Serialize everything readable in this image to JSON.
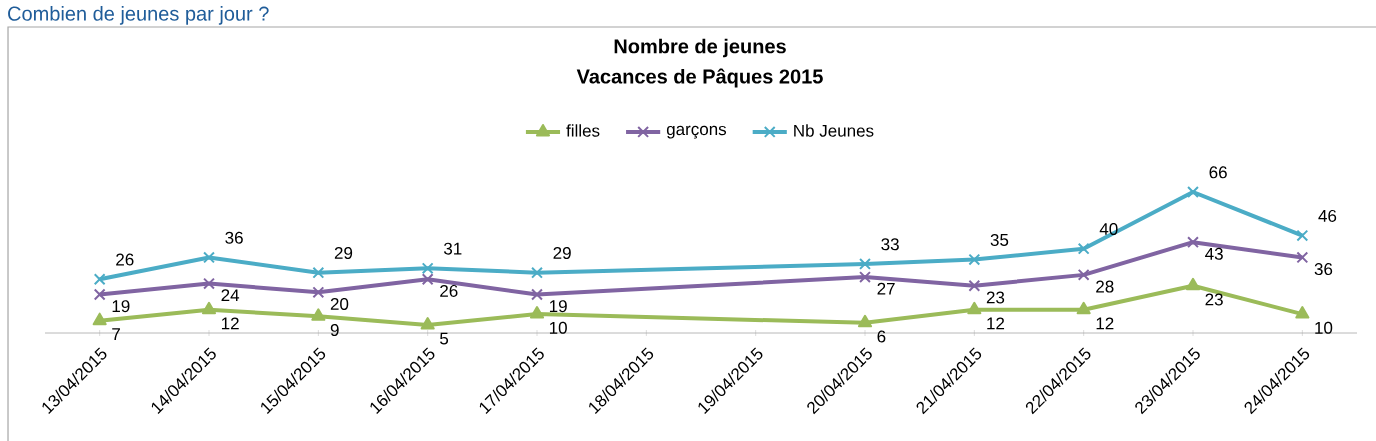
{
  "chart_data": {
    "type": "line",
    "title": "Nombre de jeunes",
    "subtitle": "Vacances de Pâques 2015",
    "annotations": [
      "Combien de jeunes par jour ?"
    ],
    "categories": [
      "13/04/2015",
      "14/04/2015",
      "15/04/2015",
      "16/04/2015",
      "17/04/2015",
      "18/04/2015",
      "19/04/2015",
      "20/04/2015",
      "21/04/2015",
      "22/04/2015",
      "23/04/2015",
      "24/04/2015"
    ],
    "series": [
      {
        "name": "filles",
        "color": "#9bbb59",
        "marker": "triangle",
        "values": [
          7,
          12,
          9,
          5,
          10,
          null,
          null,
          6,
          12,
          12,
          23,
          10
        ]
      },
      {
        "name": "garçons",
        "color": "#8064a2",
        "marker": "cross",
        "values": [
          19,
          24,
          20,
          26,
          19,
          null,
          null,
          27,
          23,
          28,
          43,
          36
        ]
      },
      {
        "name": "Nb Jeunes",
        "color": "#4bacc6",
        "marker": "cross",
        "values": [
          26,
          36,
          29,
          31,
          29,
          null,
          null,
          33,
          35,
          40,
          66,
          46
        ]
      }
    ],
    "data_labels": true,
    "legend": "top",
    "line_style": "solid"
  }
}
